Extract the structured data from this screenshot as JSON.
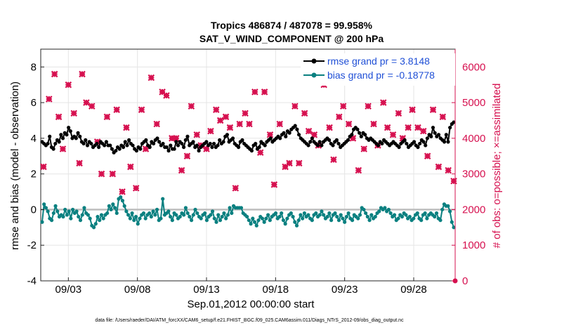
{
  "chart_data": {
    "type": "line",
    "title_line1": "Tropics 486874 / 487078 = 99.958%",
    "title_line2": "SAT_V_WIND_COMPONENT @ 200 hPa",
    "xlabel": "Sep.01,2012 00:00:00 start",
    "ylabel_left": "rmse and bias (model - observation)",
    "ylabel_right": "# of obs: o=possible; ×=assimilated",
    "xlim": [
      1.0,
      31.0
    ],
    "ylim_left": [
      -4,
      9
    ],
    "ylim_right": [
      0,
      6500
    ],
    "x_ticks": [
      3,
      8,
      13,
      18,
      23,
      28
    ],
    "x_tick_labels": [
      "09/03",
      "09/08",
      "09/13",
      "09/18",
      "09/23",
      "09/28"
    ],
    "y_ticks_left": [
      -4,
      -2,
      0,
      2,
      4,
      6,
      8
    ],
    "y_tick_labels_left": [
      "-4",
      "-2",
      "0",
      "2",
      "4",
      "6",
      "8"
    ],
    "y_ticks_right": [
      0,
      1000,
      2000,
      3000,
      4000,
      5000,
      6000
    ],
    "y_tick_labels_right": [
      "0",
      "1000",
      "2000",
      "3000",
      "4000",
      "5000",
      "6000"
    ],
    "grid": true,
    "legend_position": "top-right",
    "colors": {
      "rmse": "#000000",
      "bias": "#0a8080",
      "obs": "#d6104f",
      "legend_text": "#1f4fd6",
      "zero_line": "#bdbdbd",
      "grid": "#e5e5e5"
    },
    "series": [
      {
        "name": "rmse grand pr = 3.8148",
        "axis": "left",
        "values": [
          3.8,
          3.7,
          3.6,
          3.7,
          4.1,
          3.5,
          3.4,
          3.7,
          3.9,
          3.8,
          4.2,
          4.0,
          4.3,
          4.2,
          4.6,
          4.4,
          4.0,
          4.1,
          4.0,
          4.3,
          4.1,
          3.8,
          3.7,
          3.9,
          3.6,
          3.8,
          3.7,
          3.5,
          3.6,
          3.7,
          3.5,
          3.8,
          3.7,
          3.6,
          3.8,
          3.6,
          3.6,
          3.4,
          3.2,
          3.3,
          3.5,
          3.4,
          3.6,
          3.5,
          3.8,
          3.6,
          3.9,
          3.7,
          3.6,
          3.4,
          3.3,
          3.5,
          3.4,
          3.7,
          3.8,
          3.9,
          3.6,
          3.5,
          3.8,
          3.7,
          3.9,
          4.0,
          3.8,
          3.6,
          3.7,
          3.5,
          3.5,
          3.3,
          3.6,
          3.4,
          3.4,
          3.8,
          3.6,
          3.8,
          3.7,
          3.5,
          3.9,
          4.1,
          3.6,
          3.7,
          3.8,
          3.5,
          3.6,
          3.3,
          3.5,
          3.6,
          3.7,
          3.8,
          3.6,
          3.7,
          3.5,
          3.7,
          3.5,
          3.6,
          3.9,
          3.7,
          3.8,
          4.1,
          4.2,
          3.8,
          3.9,
          4.0,
          3.7,
          3.6,
          3.5,
          3.8,
          3.9,
          3.7,
          3.6,
          3.5,
          3.4,
          3.3,
          3.6,
          3.7,
          3.4,
          3.5,
          3.8,
          3.7,
          3.6,
          3.8,
          3.9,
          4.0,
          3.8,
          3.9,
          4.0,
          4.1,
          4.0,
          4.2,
          4.3,
          4.1,
          4.4,
          4.3,
          4.5,
          4.6,
          4.7,
          4.5,
          4.2,
          4.0,
          3.9,
          3.8,
          3.7,
          3.6,
          3.8,
          4.0,
          3.8,
          3.7,
          3.6,
          3.8,
          3.6,
          3.8,
          3.9,
          4.0,
          3.9,
          3.7,
          3.6,
          3.8,
          3.9,
          3.7,
          3.5,
          3.6,
          3.7,
          3.8,
          3.9,
          4.1,
          4.2,
          4.5,
          4.6,
          4.5,
          4.3,
          4.1,
          4.3,
          4.2,
          4.0,
          3.9,
          4.0,
          3.9,
          3.8,
          3.7,
          3.6,
          3.8,
          3.7,
          3.9,
          3.8,
          3.7,
          3.6,
          3.7,
          3.8,
          3.7,
          3.6,
          3.5,
          3.7,
          3.8,
          3.9,
          3.7,
          3.5,
          3.6,
          3.7,
          3.8,
          3.6,
          3.5,
          3.7,
          3.9,
          3.8,
          3.6,
          4.0,
          4.2,
          4.1,
          4.6,
          4.3,
          4.1,
          4.2,
          4.0,
          3.9,
          3.8,
          4.2,
          3.8,
          4.6,
          4.8,
          4.9
        ]
      },
      {
        "name": "bias grand pr = -0.18778",
        "axis": "left",
        "values": [
          -0.7,
          0.3,
          0.1,
          -0.1,
          -0.5,
          -0.6,
          -0.2,
          0.2,
          -0.1,
          -0.4,
          -0.3,
          -0.4,
          0.0,
          -0.3,
          -0.1,
          -0.5,
          0.0,
          -0.2,
          -0.1,
          -0.4,
          -0.6,
          -0.3,
          0.1,
          -0.2,
          -0.3,
          -0.5,
          -0.9,
          -1.0,
          -0.8,
          -0.4,
          -0.6,
          -0.3,
          -0.5,
          -0.3,
          -0.2,
          0.2,
          0.0,
          0.3,
          0.1,
          -0.2,
          0.6,
          0.7,
          0.5,
          0.2,
          -0.1,
          -0.3,
          -0.5,
          -0.2,
          -0.6,
          -0.4,
          -0.8,
          -0.5,
          -0.3,
          -0.2,
          -0.5,
          -0.3,
          -0.2,
          -0.4,
          -0.1,
          -0.3,
          0.0,
          -0.6,
          -0.5,
          0.6,
          -0.3,
          -0.2,
          -0.1,
          -0.4,
          -0.6,
          -0.2,
          -0.3,
          -0.5,
          -0.4,
          -0.2,
          -0.3,
          0.1,
          -0.2,
          -0.4,
          -0.6,
          -0.3,
          0.0,
          -0.2,
          -0.4,
          -0.5,
          -0.3,
          -0.2,
          -0.6,
          -0.4,
          -0.3,
          -0.1,
          -0.5,
          -0.7,
          -0.3,
          -0.6,
          -0.4,
          -0.2,
          -0.5,
          -0.3,
          0.1,
          -0.2,
          0.2,
          0.1,
          0.1,
          0.1,
          0.1,
          -0.2,
          -0.3,
          -0.4,
          -0.6,
          -0.8,
          -0.5,
          -0.7,
          -0.9,
          -0.6,
          -0.4,
          -0.5,
          -0.7,
          -0.5,
          -0.3,
          -0.6,
          -0.4,
          -0.3,
          -0.2,
          -0.5,
          -0.4,
          -0.2,
          -0.6,
          -0.8,
          -0.5,
          -0.3,
          -0.2,
          -0.4,
          -0.7,
          -0.9,
          -0.6,
          -0.3,
          -0.5,
          -0.2,
          -0.4,
          -0.3,
          -0.5,
          -0.6,
          -0.3,
          -0.2,
          -0.4,
          -0.3,
          -0.1,
          -0.3,
          -0.5,
          -0.4,
          -0.2,
          -0.6,
          -0.3,
          -0.2,
          -0.4,
          -0.6,
          -0.3,
          -0.5,
          -0.7,
          -0.4,
          -0.2,
          -0.5,
          -0.6,
          -0.3,
          -0.4,
          -0.5,
          -0.3,
          0.1,
          0.0,
          -0.2,
          -0.4,
          -0.6,
          -0.3,
          -0.5,
          -0.4,
          -0.2,
          -0.1,
          0.1,
          0.0,
          0.1,
          -0.1,
          0.0,
          -0.2,
          -0.4,
          -0.3,
          -0.6,
          -0.5,
          -0.3,
          -0.4,
          -0.2,
          -0.3,
          -0.5,
          -0.4,
          -0.6,
          -0.5,
          -0.3,
          -0.2,
          -0.5,
          -0.6,
          -0.3,
          -0.2,
          -0.5,
          -0.3,
          -0.2,
          -0.3,
          -0.4,
          -0.2,
          -0.5,
          -0.6,
          0.0,
          0.3,
          0.2,
          0.2,
          -0.1,
          -0.7,
          -1.0
        ]
      },
      {
        "name": "# obs assimilated",
        "axis": "right",
        "x": [
          1.2,
          1.6,
          2.0,
          2.3,
          2.6,
          3.0,
          3.4,
          3.8,
          4.0,
          4.3,
          4.7,
          5.1,
          5.4,
          5.8,
          6.2,
          6.5,
          6.9,
          7.2,
          7.5,
          7.9,
          8.3,
          8.6,
          9.0,
          9.4,
          9.8,
          10.1,
          10.5,
          10.8,
          11.2,
          11.6,
          11.9,
          12.3,
          12.6,
          13.0,
          13.3,
          13.7,
          14.0,
          14.4,
          14.7,
          15.1,
          15.4,
          15.8,
          16.1,
          16.5,
          16.9,
          17.2,
          17.6,
          17.9,
          18.3,
          18.7,
          19.0,
          19.4,
          19.7,
          20.1,
          20.4,
          20.8,
          21.1,
          21.5,
          21.9,
          22.2,
          22.6,
          22.9,
          23.3,
          23.6,
          24.0,
          24.4,
          24.7,
          25.1,
          25.4,
          25.8,
          26.1,
          26.5,
          26.9,
          27.2,
          27.6,
          27.9,
          28.3,
          28.7,
          29.0,
          29.4,
          29.8,
          30.1,
          30.5,
          30.9
        ],
        "values": [
          3200,
          5100,
          5800,
          4600,
          3700,
          5500,
          4700,
          3300,
          5800,
          5000,
          4900,
          3900,
          3000,
          4600,
          3000,
          4800,
          2500,
          4300,
          3200,
          2600,
          4800,
          3700,
          5700,
          4400,
          5300,
          5200,
          4000,
          4000,
          3100,
          3500,
          4900,
          4100,
          3800,
          3700,
          4200,
          4800,
          4500,
          4600,
          4300,
          2600,
          4400,
          4700,
          4400,
          5300,
          3600,
          5300,
          4100,
          2700,
          4400,
          3200,
          3300,
          4900,
          3300,
          4700,
          4200,
          4100,
          3800,
          5500,
          4300,
          3400,
          4600,
          4900,
          4400,
          4000,
          3100,
          3700,
          4900,
          4400,
          3800,
          5000,
          4300,
          4100,
          4700,
          4000,
          4300,
          4800,
          4300,
          4200,
          3500,
          4800,
          3200,
          4600,
          3100,
          2800
        ]
      }
    ],
    "legend": [
      {
        "label": "rmse grand pr = 3.8148"
      },
      {
        "label": "bias grand pr = -0.18778"
      }
    ],
    "footnote": "data file: /Users/raeder/DAI/ATM_forcXX/CAM6_setup/f.e21.FHIST_BGC.f09_025.CAM6assim.011/Diags_NTrS_2012-09/obs_diag_output.nc"
  }
}
